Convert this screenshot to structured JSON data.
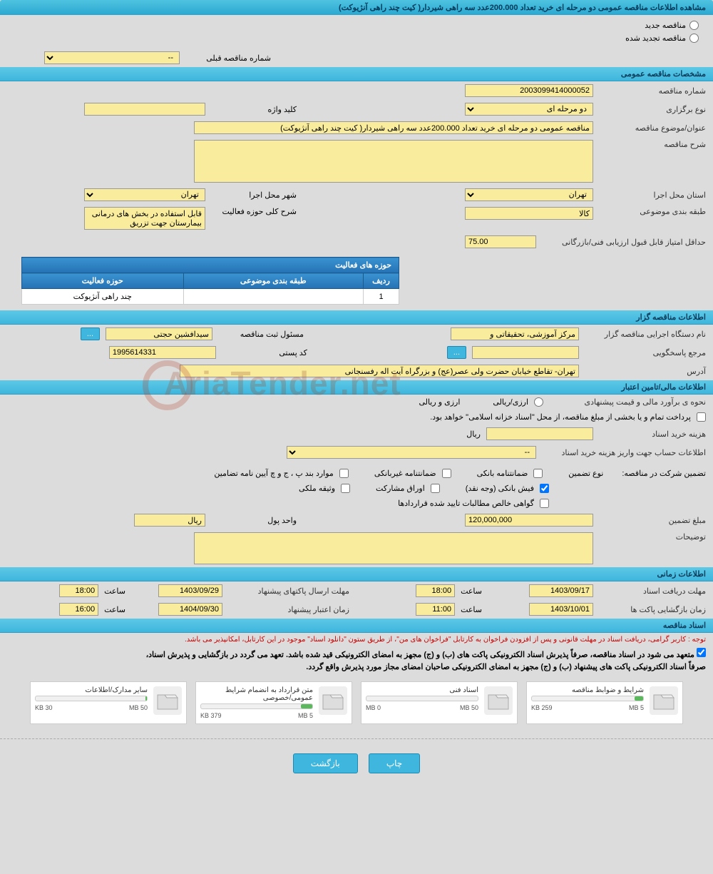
{
  "page_title": "مشاهده اطلاعات مناقصه عمومی دو مرحله ای خرید تعداد 200.000عدد سه راهی شیردار( کیت چند راهی آنژیوکت)",
  "tender_status": {
    "new_label": "مناقصه جدید",
    "renewed_label": "مناقصه تجدید شده"
  },
  "prev_number": {
    "label": "شماره مناقصه قبلی",
    "value": "--"
  },
  "sections": {
    "general": "مشخصات مناقصه عمومی",
    "organizer": "اطلاعات مناقصه گزار",
    "financial": "اطلاعات مالی/تامین اعتبار",
    "timing": "اطلاعات زمانی",
    "documents": "اسناد مناقصه"
  },
  "general": {
    "tender_no_label": "شماره مناقصه",
    "tender_no": "2003099414000052",
    "type_label": "نوع برگزاری",
    "type": "دو مرحله ای",
    "keyword_label": "کلید واژه",
    "keyword": "",
    "subject_label": "عنوان/موضوع مناقصه",
    "subject": "مناقصه عمومی دو مرحله ای خرید تعداد 200.000عدد سه راهی شیردار( کیت چند راهی آنژیوکت)",
    "desc_label": "شرح مناقصه",
    "desc": "",
    "province_label": "استان محل اجرا",
    "province": "تهران",
    "city_label": "شهر محل اجرا",
    "city": "تهران",
    "class_label": "طبقه بندی موضوعی",
    "class": "کالا",
    "activity_scope_label": "شرح کلی حوزه فعالیت",
    "activity_scope": "قابل استفاده در بخش های درمانی بیمارستان جهت تزریق",
    "min_score_label": "حداقل امتیاز قابل قبول ارزیابی فنی/بازرگانی",
    "min_score": "75.00"
  },
  "activity_table": {
    "header": "حوزه های فعالیت",
    "col_row": "ردیف",
    "col_class": "طبقه بندی موضوعی",
    "col_domain": "حوزه فعالیت",
    "rows": [
      {
        "n": "1",
        "class": "",
        "domain": "چند راهی آنژیوکت"
      }
    ]
  },
  "organizer": {
    "org_label": "نام دستگاه اجرایی مناقصه گزار",
    "org": "مرکز آموزشی، تحقیقاتی و",
    "registrar_label": "مسئول ثبت مناقصه",
    "registrar": "سیدافشین حجتی",
    "response_label": "مرجع پاسخگویی",
    "postal_label": "کد پستی",
    "postal": "1995614331",
    "more_btn": "...",
    "address_label": "آدرس",
    "address": "تهران- تقاطع خیابان حضرت ولی عصر(عج) و بزرگراه آیت اله رفسنجانی"
  },
  "financial": {
    "estimate_label": "نحوه ی برآورد مالی و قیمت پیشنهادی",
    "currency_opt_fx": "ارزی/ریالی",
    "currency_opt_both": "ارزی و ریالی",
    "treasury_note": "پرداخت تمام و یا بخشی از مبلغ مناقصه، از محل \"اسناد خزانه اسلامی\" خواهد بود.",
    "doc_fee_label": "هزینه خرید اسناد",
    "doc_fee": "",
    "rial_label": "ریال",
    "deposit_account_label": "اطلاعات حساب جهت واریز هزینه خرید اسناد",
    "deposit_account": "--",
    "guarantee_label": "تضمین شرکت در مناقصه:",
    "guarantee_type_label": "نوع تضمین",
    "g_bank": "ضمانتنامه بانکی",
    "g_nonbank": "ضمانتنامه غیربانکی",
    "g_clause": "موارد بند پ ، ج و چ آیین نامه تضامین",
    "g_cash": "فیش بانکی (وجه نقد)",
    "g_bonds": "اوراق مشارکت",
    "g_property": "وثیقه ملکی",
    "g_receivables": "گواهی خالص مطالبات تایید شده قراردادها",
    "amount_label": "مبلغ تضمین",
    "amount": "120,000,000",
    "unit_label": "واحد پول",
    "unit": "ریال",
    "notes_label": "توضیحات",
    "notes": ""
  },
  "timing": {
    "doc_receive_label": "مهلت دریافت اسناد",
    "doc_receive_date": "1403/09/17",
    "hour_label": "ساعت",
    "doc_receive_time": "18:00",
    "envelope_send_label": "مهلت ارسال پاکتهای پیشنهاد",
    "envelope_send_date": "1403/09/29",
    "envelope_send_time": "18:00",
    "open_label": "زمان بازگشایی پاکت ها",
    "open_date": "1403/10/01",
    "open_time": "11:00",
    "validity_label": "زمان اعتبار پیشنهاد",
    "validity_date": "1404/09/30",
    "validity_time": "16:00"
  },
  "docs": {
    "notice1": "توجه : کاربر گرامی، دریافت اسناد در مهلت قانونی و پس از افزودن فراخوان به کارتابل \"فراخوان های من\"، از طریق ستون \"دانلود اسناد\" موجود در این کارتابل، امکانپذیر می باشد.",
    "notice2": "متعهد می شود در اسناد مناقصه، صرفاً پذیرش اسناد الکترونیکی پاکت های (ب) و (ج) مجهز به امضای الکترونیکی قید شده باشد. تعهد می گردد در بازگشایی و پذیرش اسناد،",
    "notice3": "صرفاً اسناد الکترونیکی پاکت های پیشنهاد (ب) و (ج) مجهز به امضای الکترونیکی صاحبان امضای مجاز مورد پذیرش واقع گردد.",
    "items": [
      {
        "title": "شرایط و ضوابط مناقصه",
        "used": "259 KB",
        "total": "5 MB",
        "pct": 8
      },
      {
        "title": "اسناد فنی",
        "used": "0 MB",
        "total": "50 MB",
        "pct": 0
      },
      {
        "title": "متن قرارداد به انضمام شرایط عمومی/خصوصی",
        "used": "379 KB",
        "total": "5 MB",
        "pct": 10
      },
      {
        "title": "سایر مدارک/اطلاعات",
        "used": "30 KB",
        "total": "50 MB",
        "pct": 1
      }
    ]
  },
  "buttons": {
    "print": "چاپ",
    "back": "بازگشت"
  },
  "watermark": "AriaTender.net",
  "colors": {
    "header_bg": "#3fb6dd",
    "field_bg": "#f9ed9d",
    "page_bg": "#dcdcdc"
  }
}
